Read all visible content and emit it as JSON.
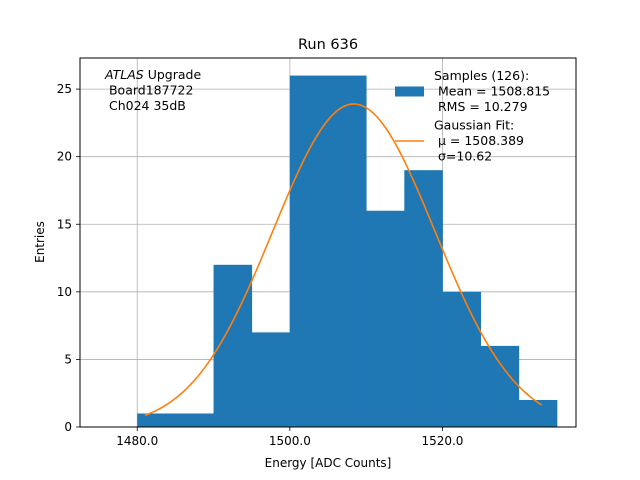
{
  "chart_data": {
    "type": "bar",
    "title": "Run 636",
    "xlabel": "Energy [ADC Counts]",
    "ylabel": "Entries",
    "xlim": [
      1472.5,
      1537.5
    ],
    "ylim": [
      0,
      27.3
    ],
    "grid": true,
    "x_ticks": [
      1480,
      1500,
      1520
    ],
    "x_tick_labels": [
      "1480.0",
      "1500.0",
      "1520.0"
    ],
    "y_ticks": [
      0,
      5,
      10,
      15,
      20,
      25
    ],
    "y_tick_labels": [
      "0",
      "5",
      "10",
      "15",
      "20",
      "25"
    ],
    "histogram": {
      "bin_edges": [
        1480,
        1485,
        1490,
        1495,
        1500,
        1505,
        1510,
        1515,
        1520,
        1525,
        1530,
        1535
      ],
      "counts": [
        1,
        1,
        12,
        7,
        26,
        26,
        16,
        19,
        10,
        6,
        2
      ],
      "color": "#1f77b4"
    },
    "fit": {
      "color": "#ff7f0e",
      "mu": 1508.389,
      "sigma": 10.62,
      "amplitude": 23.9,
      "x_range": [
        1481,
        1533
      ]
    },
    "annotation_lines": [
      {
        "italic": "ATLAS",
        "rest": " Upgrade"
      },
      {
        "italic": "",
        "rest": " Board187722"
      },
      {
        "italic": "",
        "rest": " Ch024 35dB"
      }
    ],
    "legend": {
      "position": "upper right",
      "entries": [
        {
          "kind": "patch",
          "color": "#1f77b4",
          "lines": [
            "Samples (126):",
            " Mean = 1508.815",
            " RMS = 10.279"
          ]
        },
        {
          "kind": "line",
          "color": "#ff7f0e",
          "lines": [
            "Gaussian Fit:",
            " μ = 1508.389",
            " σ=10.62"
          ]
        }
      ]
    }
  }
}
